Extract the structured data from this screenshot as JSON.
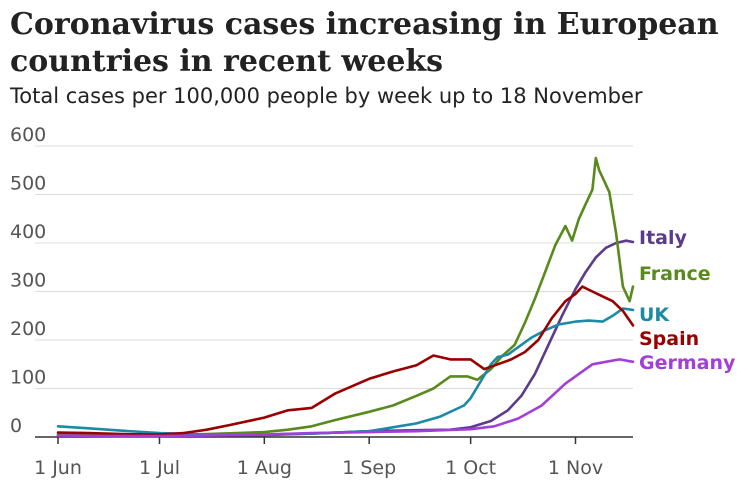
{
  "chart_data": {
    "type": "line",
    "title": "Coronavirus cases increasing in European countries in recent weeks",
    "subtitle": "Total cases per 100,000 people by week up to 18 November",
    "xlabel": "",
    "ylabel": "",
    "ylim": [
      0,
      600
    ],
    "yticks": [
      0,
      100,
      200,
      300,
      400,
      500,
      600
    ],
    "xlim": [
      "2020-06-01",
      "2020-11-18"
    ],
    "xticks": [
      {
        "date": "2020-06-01",
        "label": "1 Jun"
      },
      {
        "date": "2020-07-01",
        "label": "1 Jul"
      },
      {
        "date": "2020-08-01",
        "label": "1 Aug"
      },
      {
        "date": "2020-09-01",
        "label": "1 Sep"
      },
      {
        "date": "2020-10-01",
        "label": "1 Oct"
      },
      {
        "date": "2020-11-01",
        "label": "1 Nov"
      }
    ],
    "grid": true,
    "legend": "direct-labels-right",
    "series": [
      {
        "name": "Italy",
        "color": "#5b3b8c",
        "points": [
          [
            "2020-06-01",
            4
          ],
          [
            "2020-06-10",
            3
          ],
          [
            "2020-06-20",
            2
          ],
          [
            "2020-07-01",
            2
          ],
          [
            "2020-07-15",
            3
          ],
          [
            "2020-08-01",
            4
          ],
          [
            "2020-08-15",
            7
          ],
          [
            "2020-09-01",
            12
          ],
          [
            "2020-09-15",
            14
          ],
          [
            "2020-09-25",
            15
          ],
          [
            "2020-10-01",
            20
          ],
          [
            "2020-10-07",
            33
          ],
          [
            "2020-10-12",
            55
          ],
          [
            "2020-10-16",
            85
          ],
          [
            "2020-10-20",
            130
          ],
          [
            "2020-10-24",
            190
          ],
          [
            "2020-10-28",
            250
          ],
          [
            "2020-11-01",
            305
          ],
          [
            "2020-11-04",
            340
          ],
          [
            "2020-11-07",
            370
          ],
          [
            "2020-11-10",
            390
          ],
          [
            "2020-11-13",
            400
          ],
          [
            "2020-11-16",
            405
          ],
          [
            "2020-11-18",
            402
          ]
        ]
      },
      {
        "name": "France",
        "color": "#588a1c",
        "points": [
          [
            "2020-06-01",
            4
          ],
          [
            "2020-06-10",
            3
          ],
          [
            "2020-06-20",
            3
          ],
          [
            "2020-07-01",
            3
          ],
          [
            "2020-07-15",
            6
          ],
          [
            "2020-08-01",
            10
          ],
          [
            "2020-08-08",
            15
          ],
          [
            "2020-08-15",
            22
          ],
          [
            "2020-08-22",
            35
          ],
          [
            "2020-09-01",
            52
          ],
          [
            "2020-09-08",
            65
          ],
          [
            "2020-09-15",
            85
          ],
          [
            "2020-09-20",
            100
          ],
          [
            "2020-09-25",
            125
          ],
          [
            "2020-09-30",
            125
          ],
          [
            "2020-10-03",
            118
          ],
          [
            "2020-10-07",
            140
          ],
          [
            "2020-10-10",
            165
          ],
          [
            "2020-10-14",
            190
          ],
          [
            "2020-10-17",
            235
          ],
          [
            "2020-10-20",
            285
          ],
          [
            "2020-10-23",
            340
          ],
          [
            "2020-10-26",
            395
          ],
          [
            "2020-10-29",
            435
          ],
          [
            "2020-10-31",
            405
          ],
          [
            "2020-11-02",
            450
          ],
          [
            "2020-11-04",
            480
          ],
          [
            "2020-11-06",
            510
          ],
          [
            "2020-11-07",
            575
          ],
          [
            "2020-11-08",
            550
          ],
          [
            "2020-11-09",
            535
          ],
          [
            "2020-11-11",
            505
          ],
          [
            "2020-11-13",
            420
          ],
          [
            "2020-11-15",
            310
          ],
          [
            "2020-11-17",
            280
          ],
          [
            "2020-11-18",
            310
          ]
        ]
      },
      {
        "name": "UK",
        "color": "#1c8aa6",
        "points": [
          [
            "2020-06-01",
            22
          ],
          [
            "2020-06-10",
            18
          ],
          [
            "2020-06-20",
            13
          ],
          [
            "2020-07-01",
            8
          ],
          [
            "2020-07-15",
            5
          ],
          [
            "2020-08-01",
            5
          ],
          [
            "2020-08-15",
            7
          ],
          [
            "2020-09-01",
            12
          ],
          [
            "2020-09-08",
            20
          ],
          [
            "2020-09-15",
            28
          ],
          [
            "2020-09-22",
            42
          ],
          [
            "2020-09-29",
            65
          ],
          [
            "2020-10-01",
            80
          ],
          [
            "2020-10-04",
            115
          ],
          [
            "2020-10-07",
            150
          ],
          [
            "2020-10-09",
            165
          ],
          [
            "2020-10-12",
            170
          ],
          [
            "2020-10-15",
            185
          ],
          [
            "2020-10-19",
            205
          ],
          [
            "2020-10-23",
            220
          ],
          [
            "2020-10-27",
            232
          ],
          [
            "2020-11-01",
            238
          ],
          [
            "2020-11-05",
            240
          ],
          [
            "2020-11-09",
            238
          ],
          [
            "2020-11-12",
            250
          ],
          [
            "2020-11-15",
            265
          ],
          [
            "2020-11-18",
            262
          ]
        ]
      },
      {
        "name": "Spain",
        "color": "#990000",
        "points": [
          [
            "2020-06-01",
            9
          ],
          [
            "2020-06-10",
            8
          ],
          [
            "2020-06-20",
            6
          ],
          [
            "2020-07-01",
            5
          ],
          [
            "2020-07-08",
            8
          ],
          [
            "2020-07-15",
            15
          ],
          [
            "2020-07-22",
            25
          ],
          [
            "2020-08-01",
            40
          ],
          [
            "2020-08-08",
            55
          ],
          [
            "2020-08-15",
            60
          ],
          [
            "2020-08-22",
            90
          ],
          [
            "2020-09-01",
            120
          ],
          [
            "2020-09-08",
            135
          ],
          [
            "2020-09-15",
            148
          ],
          [
            "2020-09-20",
            168
          ],
          [
            "2020-09-25",
            160
          ],
          [
            "2020-10-01",
            160
          ],
          [
            "2020-10-05",
            140
          ],
          [
            "2020-10-09",
            150
          ],
          [
            "2020-10-13",
            160
          ],
          [
            "2020-10-17",
            175
          ],
          [
            "2020-10-21",
            200
          ],
          [
            "2020-10-25",
            245
          ],
          [
            "2020-10-29",
            280
          ],
          [
            "2020-11-01",
            295
          ],
          [
            "2020-11-03",
            310
          ],
          [
            "2020-11-06",
            300
          ],
          [
            "2020-11-09",
            290
          ],
          [
            "2020-11-12",
            280
          ],
          [
            "2020-11-15",
            260
          ],
          [
            "2020-11-18",
            230
          ]
        ]
      },
      {
        "name": "Germany",
        "color": "#a33fd6",
        "points": [
          [
            "2020-06-01",
            3
          ],
          [
            "2020-06-15",
            2
          ],
          [
            "2020-07-01",
            2
          ],
          [
            "2020-07-15",
            3
          ],
          [
            "2020-08-01",
            5
          ],
          [
            "2020-08-15",
            8
          ],
          [
            "2020-09-01",
            10
          ],
          [
            "2020-09-15",
            12
          ],
          [
            "2020-10-01",
            16
          ],
          [
            "2020-10-08",
            22
          ],
          [
            "2020-10-15",
            38
          ],
          [
            "2020-10-22",
            65
          ],
          [
            "2020-10-29",
            110
          ],
          [
            "2020-11-02",
            130
          ],
          [
            "2020-11-06",
            150
          ],
          [
            "2020-11-10",
            155
          ],
          [
            "2020-11-14",
            160
          ],
          [
            "2020-11-18",
            155
          ]
        ]
      }
    ]
  }
}
